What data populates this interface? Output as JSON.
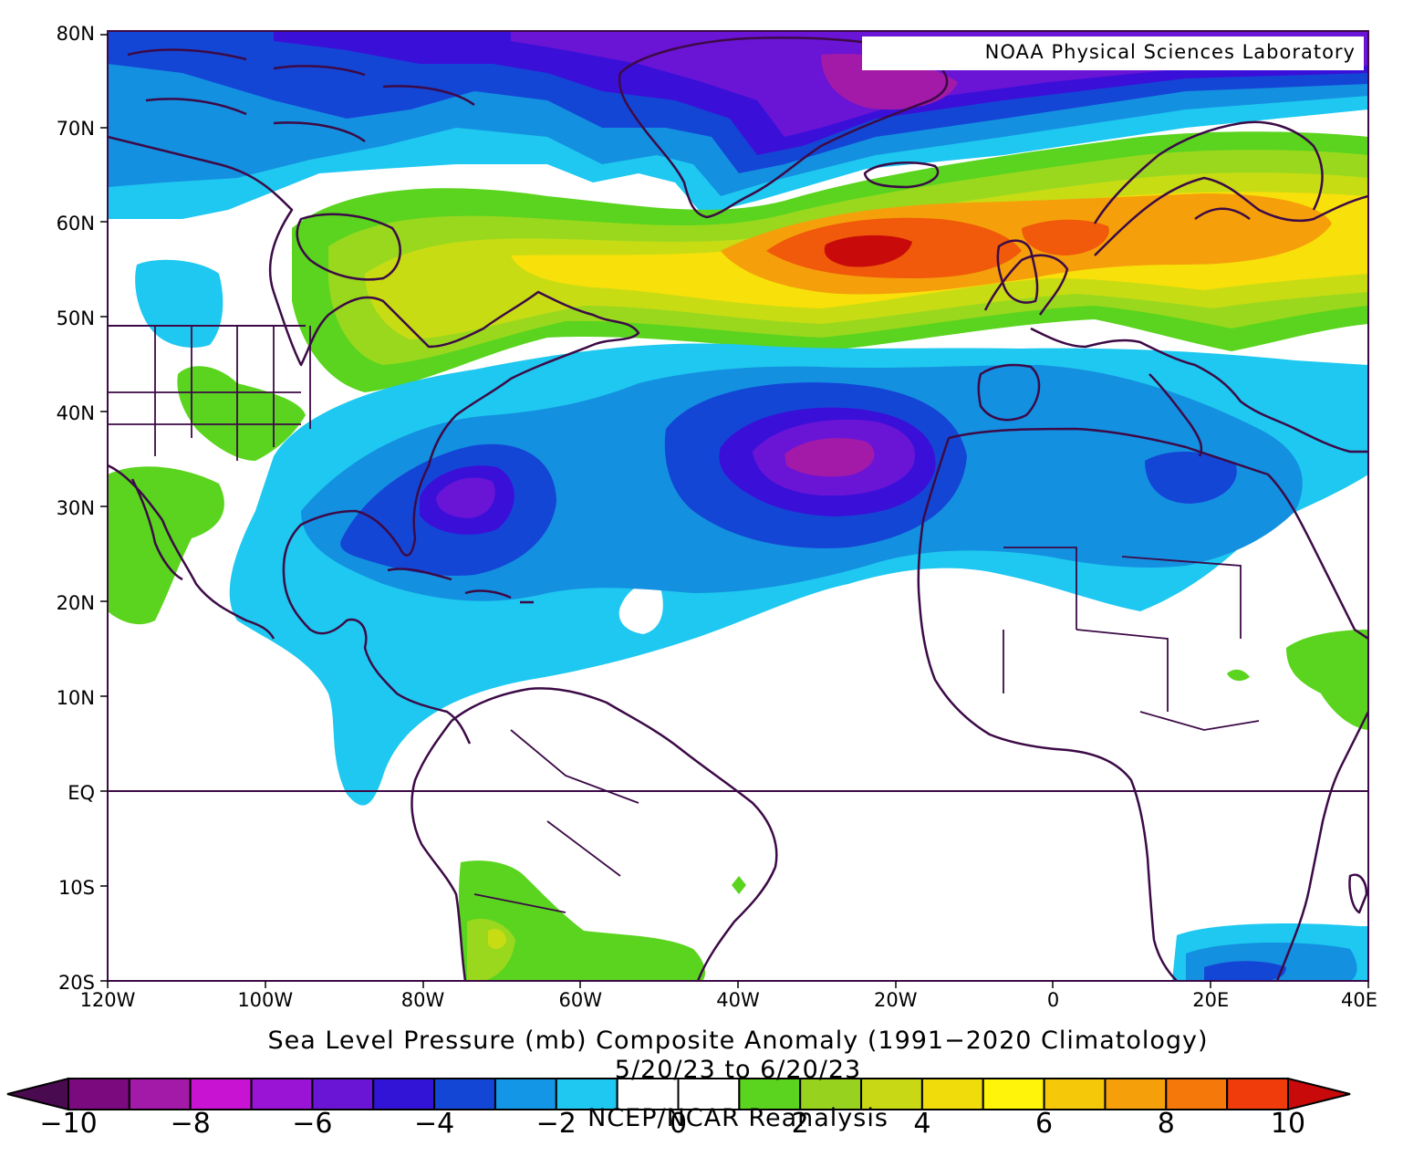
{
  "credit": "NOAA Physical Sciences Laboratory",
  "title": {
    "line1": "Sea Level Pressure (mb) Composite Anomaly (1991−2020 Climatology)",
    "line2": "5/20/23  to 6/20/23",
    "line3": "NCEP/NCAR Reanalysis"
  },
  "lat_labels": [
    "80N",
    "70N",
    "60N",
    "50N",
    "40N",
    "30N",
    "20N",
    "10N",
    "EQ",
    "10S",
    "20S"
  ],
  "lon_labels": [
    "120W",
    "100W",
    "80W",
    "60W",
    "40W",
    "20W",
    "0",
    "20E",
    "40E"
  ],
  "colorbar": {
    "labels": [
      "−10",
      "−8",
      "−6",
      "−4",
      "−2",
      "0",
      "2",
      "4",
      "6",
      "8",
      "10"
    ],
    "colors": [
      "#4a0a4f",
      "#7a0a7e",
      "#a41aa8",
      "#c814d2",
      "#9a14d6",
      "#6a14d6",
      "#3214d6",
      "#1446d6",
      "#1496e6",
      "#1ec8f0",
      "#ffffff",
      "#ffffff",
      "#5ad41e",
      "#96d21e",
      "#c8d814",
      "#f0dc0a",
      "#fff40a",
      "#f5c80a",
      "#f5a00a",
      "#f5780a",
      "#f03c0a",
      "#c80a0a"
    ]
  },
  "palette": {
    "coast": "#3c0a46",
    "deep_purple": "#8c0ab4",
    "purple": "#6a14d6",
    "violet": "#3a10d8",
    "blue": "#1446d6",
    "mid_blue": "#1490e0",
    "light_blue": "#1ec8f0",
    "green": "#5ad41e",
    "lime": "#9ad81e",
    "yellow_green": "#c8dc14",
    "yellow": "#f8e00a",
    "orange": "#f5a00a",
    "red_orange": "#f05a0a",
    "red": "#c80a0a"
  }
}
